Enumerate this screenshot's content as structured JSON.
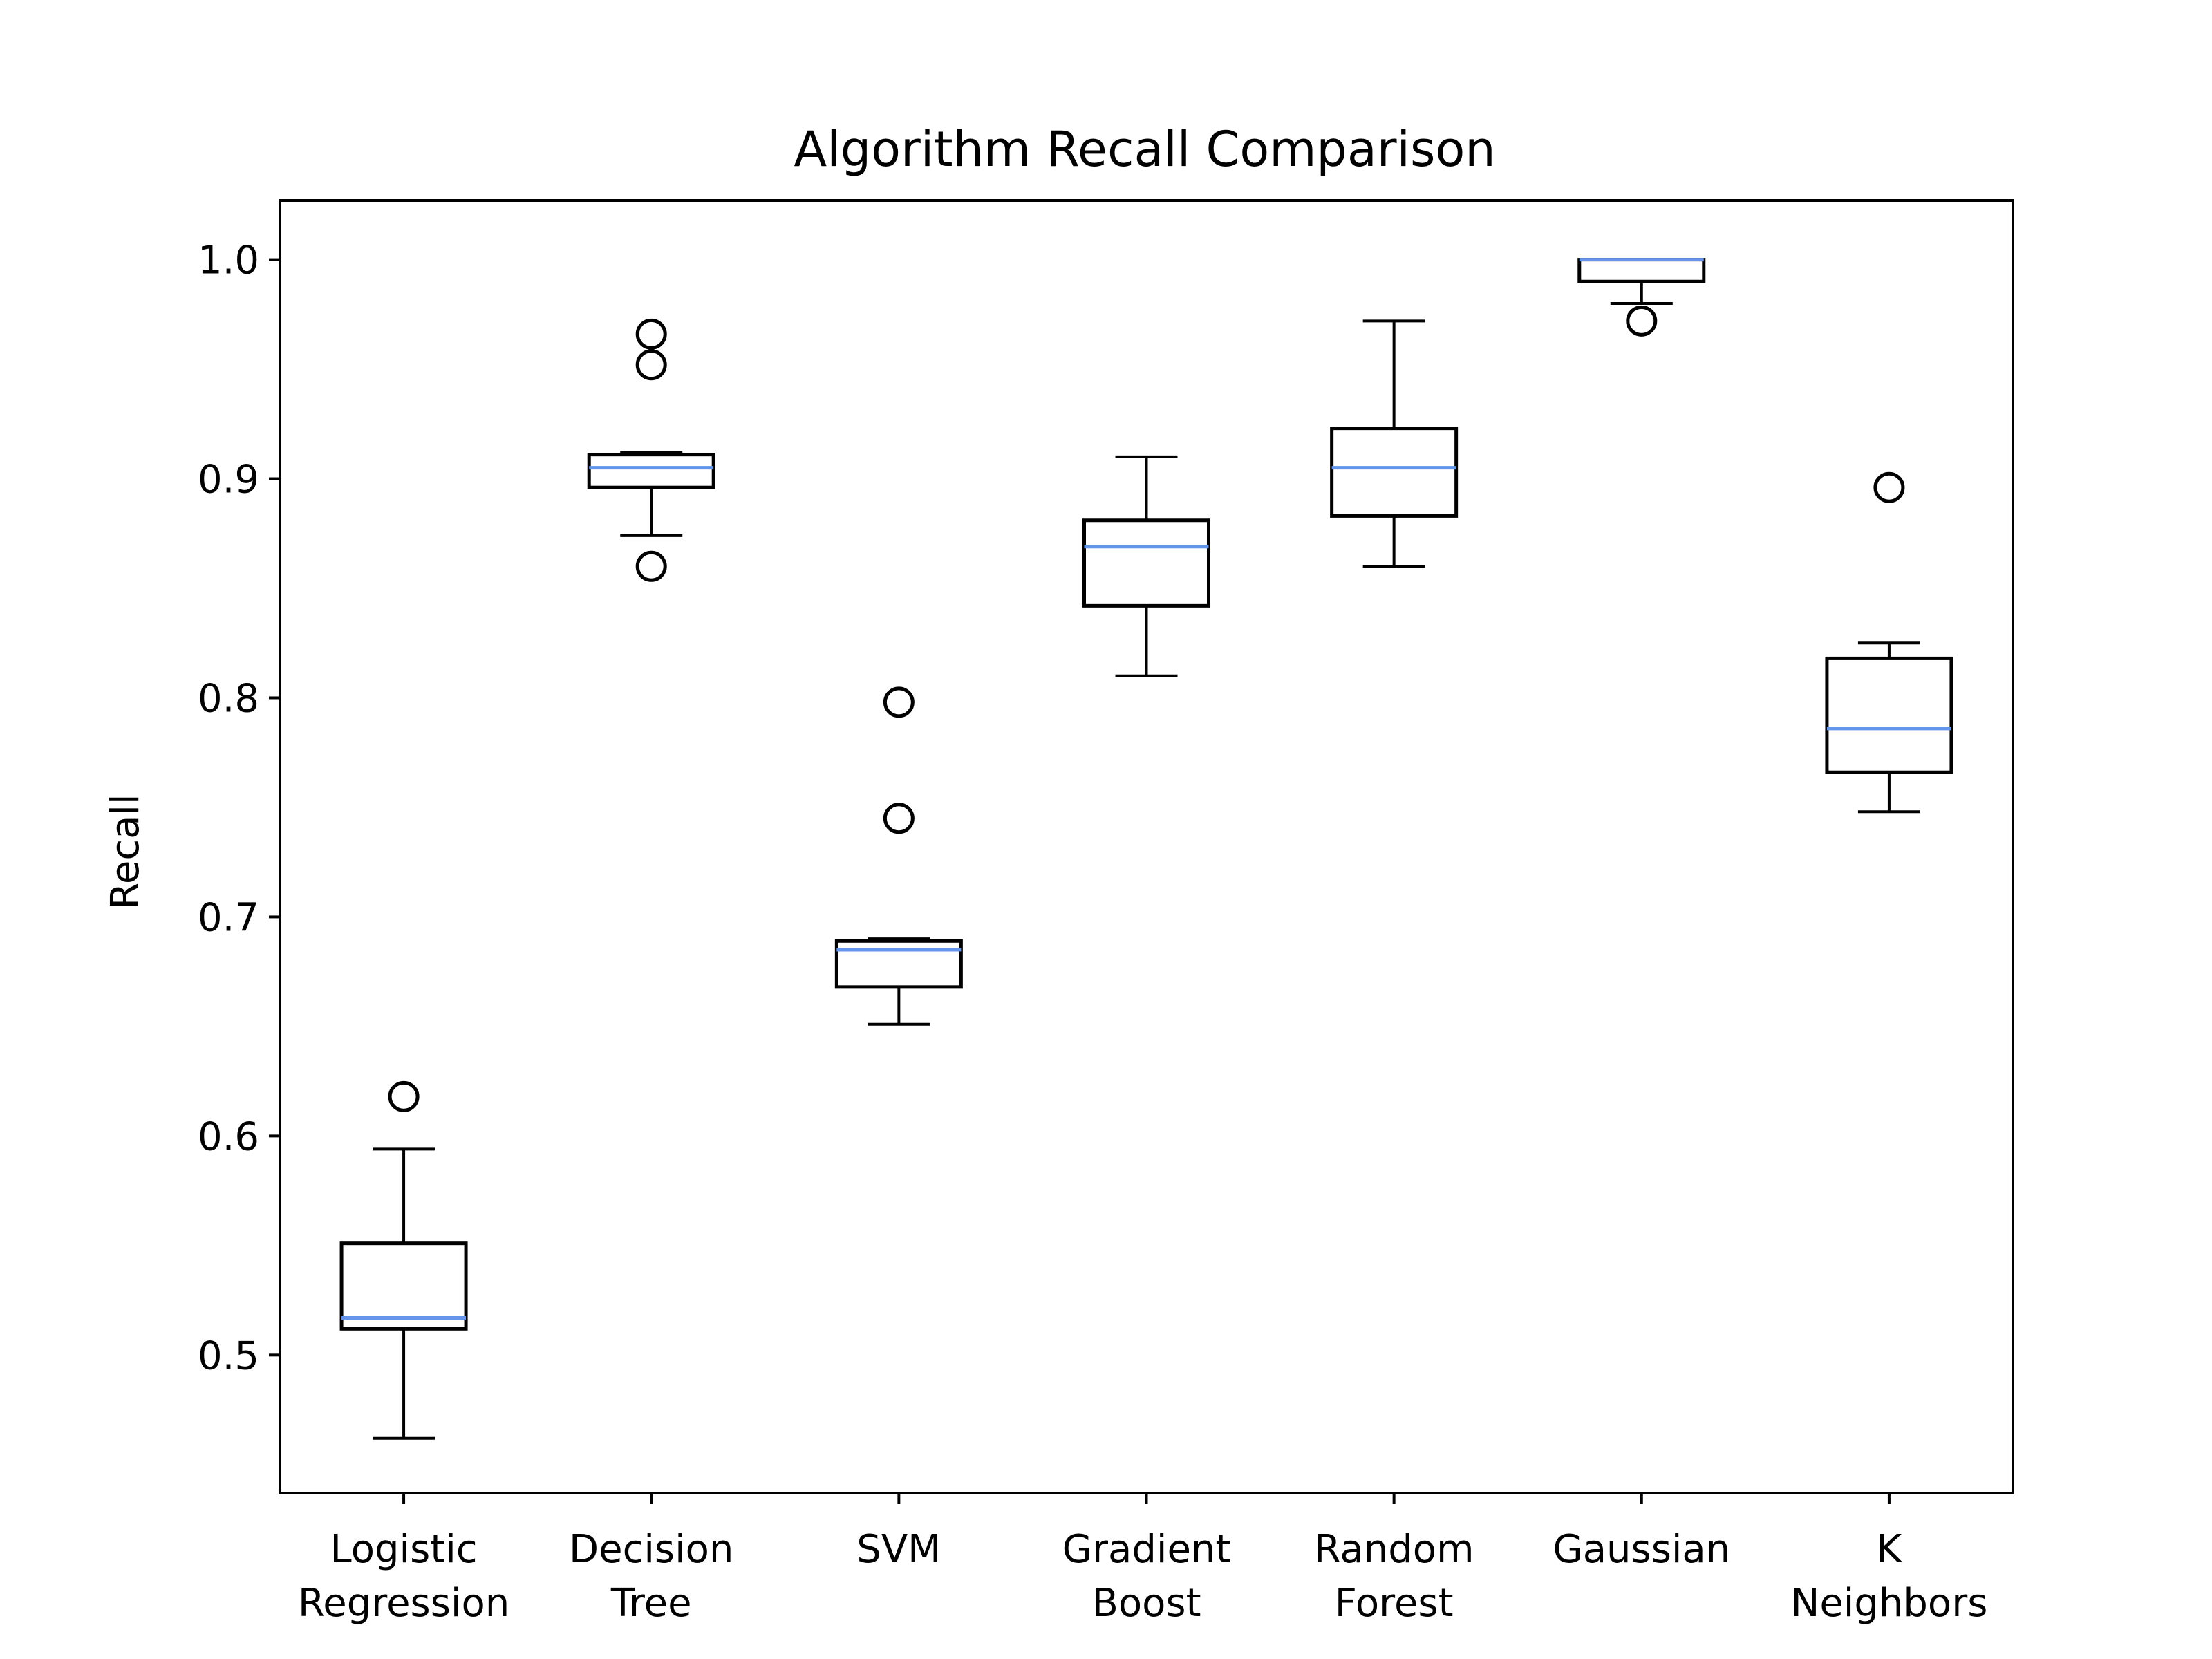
{
  "chart_data": {
    "type": "box",
    "title": "Algorithm Recall Comparison",
    "xlabel": "",
    "ylabel": "Recall",
    "ylim": [
      0.437,
      1.027
    ],
    "yticks": [
      0.5,
      0.6,
      0.7,
      0.8,
      0.9,
      1.0
    ],
    "ytick_labels": [
      "0.5",
      "0.6",
      "0.7",
      "0.8",
      "0.9",
      "1.0"
    ],
    "grid": false,
    "legend": "none",
    "colors": {
      "box": "#000000",
      "median": "#6495ed",
      "background": "#ffffff"
    },
    "categories": [
      [
        "Logistic",
        "Regression"
      ],
      [
        "Decision",
        "Tree"
      ],
      [
        "SVM"
      ],
      [
        "Gradient",
        "Boost"
      ],
      [
        "Random",
        "Forest"
      ],
      [
        "Gaussian"
      ],
      [
        "K",
        "Neighbors"
      ]
    ],
    "boxes": [
      {
        "whislo": 0.462,
        "q1": 0.512,
        "med": 0.517,
        "q3": 0.551,
        "whishi": 0.594,
        "fliers": [
          0.618
        ]
      },
      {
        "whislo": 0.874,
        "q1": 0.896,
        "med": 0.905,
        "q3": 0.911,
        "whishi": 0.912,
        "fliers": [
          0.86,
          0.952,
          0.966
        ]
      },
      {
        "whislo": 0.651,
        "q1": 0.668,
        "med": 0.685,
        "q3": 0.689,
        "whishi": 0.69,
        "fliers": [
          0.745,
          0.798
        ]
      },
      {
        "whislo": 0.81,
        "q1": 0.842,
        "med": 0.869,
        "q3": 0.881,
        "whishi": 0.91,
        "fliers": []
      },
      {
        "whislo": 0.86,
        "q1": 0.883,
        "med": 0.905,
        "q3": 0.923,
        "whishi": 0.972,
        "fliers": []
      },
      {
        "whislo": 0.98,
        "q1": 0.99,
        "med": 1.0,
        "q3": 1.0,
        "whishi": 1.0,
        "fliers": [
          0.972
        ]
      },
      {
        "whislo": 0.748,
        "q1": 0.766,
        "med": 0.786,
        "q3": 0.818,
        "whishi": 0.825,
        "fliers": [
          0.896
        ]
      }
    ]
  }
}
